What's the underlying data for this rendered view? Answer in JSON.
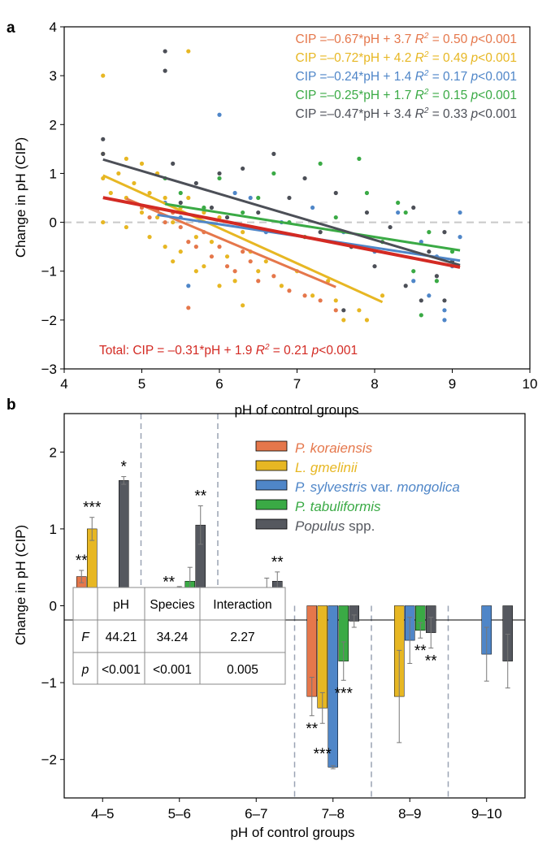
{
  "chart_data": [
    {
      "panel": "a",
      "type": "scatter",
      "xlabel": "pH of control groups",
      "ylabel": "Change in pH (CIP)",
      "xlim": [
        4,
        10
      ],
      "ylim": [
        -3,
        4
      ],
      "xticks": [
        4,
        5,
        6,
        7,
        8,
        9,
        10
      ],
      "yticks": [
        -3,
        -2,
        -1,
        0,
        1,
        2,
        3,
        4
      ],
      "reference_line_y": 0,
      "grid": false,
      "colors": {
        "orange": "#e5774b",
        "yellow": "#e7b723",
        "blue": "#4f86c8",
        "green": "#3aaa45",
        "gray": "#4c4f57",
        "red": "#d32a23"
      },
      "series": [
        {
          "color": "orange",
          "fit_slope": -0.67,
          "fit_intercept": 3.7,
          "fit_x": [
            4.8,
            7.5
          ],
          "eq": "CIP =–0.67*pH + 3.7",
          "r2_text": " = 0.50 ",
          "p_text": "<0.001",
          "points": [
            [
              5.0,
              0.3
            ],
            [
              5.1,
              0.1
            ],
            [
              5.2,
              0.25
            ],
            [
              5.3,
              0.0
            ],
            [
              5.4,
              0.2
            ],
            [
              5.5,
              -0.1
            ],
            [
              5.6,
              -0.4
            ],
            [
              5.7,
              -0.5
            ],
            [
              5.8,
              -0.2
            ],
            [
              5.9,
              -0.7
            ],
            [
              6.0,
              -0.5
            ],
            [
              6.1,
              -0.9
            ],
            [
              6.2,
              -1.0
            ],
            [
              6.3,
              -0.6
            ],
            [
              6.5,
              -1.2
            ],
            [
              6.7,
              -1.1
            ],
            [
              6.9,
              -1.4
            ],
            [
              7.1,
              -1.5
            ],
            [
              7.3,
              -1.6
            ],
            [
              7.5,
              -1.8
            ],
            [
              5.6,
              -1.75
            ],
            [
              5.5,
              0.2
            ],
            [
              6.4,
              -0.8
            ]
          ]
        },
        {
          "color": "yellow",
          "fit_slope": -0.72,
          "fit_intercept": 4.2,
          "fit_x": [
            4.5,
            8.1
          ],
          "eq": "CIP =–0.72*pH + 4.2",
          "r2_text": " = 0.49 ",
          "p_text": "<0.001",
          "points": [
            [
              4.5,
              3.0
            ],
            [
              4.5,
              1.4
            ],
            [
              4.5,
              0.9
            ],
            [
              4.5,
              0.0
            ],
            [
              4.6,
              0.6
            ],
            [
              4.7,
              1.0
            ],
            [
              4.8,
              1.3
            ],
            [
              4.8,
              0.5
            ],
            [
              4.8,
              -0.1
            ],
            [
              4.9,
              0.8
            ],
            [
              5.0,
              1.2
            ],
            [
              5.0,
              0.2
            ],
            [
              5.1,
              0.6
            ],
            [
              5.1,
              -0.3
            ],
            [
              5.2,
              1.0
            ],
            [
              5.2,
              0.1
            ],
            [
              5.3,
              0.5
            ],
            [
              5.3,
              -0.5
            ],
            [
              5.4,
              0.0
            ],
            [
              5.4,
              -0.8
            ],
            [
              5.5,
              0.3
            ],
            [
              5.5,
              -0.6
            ],
            [
              5.6,
              3.5
            ],
            [
              5.6,
              0.5
            ],
            [
              5.7,
              -0.3
            ],
            [
              5.7,
              -1.0
            ],
            [
              5.8,
              0.2
            ],
            [
              5.8,
              -0.9
            ],
            [
              5.9,
              -0.4
            ],
            [
              6.0,
              0.1
            ],
            [
              6.0,
              -1.3
            ],
            [
              6.1,
              -0.7
            ],
            [
              6.2,
              -1.2
            ],
            [
              6.3,
              -0.2
            ],
            [
              6.3,
              -1.7
            ],
            [
              6.4,
              -0.6
            ],
            [
              6.5,
              -1.0
            ],
            [
              6.6,
              -0.8
            ],
            [
              6.8,
              -1.3
            ],
            [
              7.0,
              -1.0
            ],
            [
              7.2,
              -1.5
            ],
            [
              7.4,
              -1.2
            ],
            [
              7.5,
              -1.6
            ],
            [
              7.6,
              -2.0
            ],
            [
              7.8,
              -1.8
            ],
            [
              7.9,
              -2.0
            ],
            [
              8.1,
              -1.5
            ]
          ]
        },
        {
          "color": "blue",
          "fit_slope": -0.24,
          "fit_intercept": 1.4,
          "fit_x": [
            5.2,
            9.1
          ],
          "eq": "CIP =–0.24*pH + 1.4",
          "r2_text": " = 0.17 ",
          "p_text": "<0.001",
          "points": [
            [
              5.3,
              0.4
            ],
            [
              5.5,
              0.1
            ],
            [
              5.6,
              -1.3
            ],
            [
              6.0,
              2.2
            ],
            [
              6.2,
              0.6
            ],
            [
              6.4,
              0.5
            ],
            [
              6.6,
              -0.2
            ],
            [
              6.8,
              0.0
            ],
            [
              7.2,
              0.3
            ],
            [
              7.6,
              -0.2
            ],
            [
              8.0,
              -0.6
            ],
            [
              8.3,
              0.2
            ],
            [
              8.5,
              -1.2
            ],
            [
              8.6,
              -0.4
            ],
            [
              8.7,
              -1.5
            ],
            [
              8.8,
              -0.7
            ],
            [
              8.9,
              -1.8
            ],
            [
              9.0,
              -0.9
            ],
            [
              9.1,
              0.2
            ],
            [
              9.1,
              -0.3
            ],
            [
              8.9,
              -2.0
            ]
          ]
        },
        {
          "color": "green",
          "fit_slope": -0.25,
          "fit_intercept": 1.7,
          "fit_x": [
            5.3,
            9.1
          ],
          "eq": "CIP =–0.25*pH + 1.7",
          "r2_text": " = 0.15 ",
          "p_text": "<0.001",
          "points": [
            [
              5.3,
              0.9
            ],
            [
              5.5,
              0.6
            ],
            [
              5.8,
              0.3
            ],
            [
              6.0,
              0.9
            ],
            [
              6.3,
              0.2
            ],
            [
              6.5,
              0.5
            ],
            [
              6.7,
              1.0
            ],
            [
              6.9,
              0.0
            ],
            [
              7.1,
              -0.3
            ],
            [
              7.3,
              1.2
            ],
            [
              7.5,
              0.1
            ],
            [
              7.7,
              -0.5
            ],
            [
              7.9,
              0.6
            ],
            [
              8.1,
              -0.4
            ],
            [
              8.3,
              0.4
            ],
            [
              8.5,
              -1.0
            ],
            [
              8.6,
              -1.9
            ],
            [
              8.7,
              -0.2
            ],
            [
              8.8,
              -1.2
            ],
            [
              9.0,
              -0.6
            ],
            [
              8.4,
              0.2
            ],
            [
              7.8,
              1.3
            ]
          ]
        },
        {
          "color": "gray",
          "fit_slope": -0.47,
          "fit_intercept": 3.4,
          "fit_x": [
            4.5,
            9.1
          ],
          "eq": "CIP =–0.47*pH + 3.4",
          "r2_text": " = 0.33 ",
          "p_text": "<0.001",
          "points": [
            [
              4.5,
              1.7
            ],
            [
              4.5,
              1.4
            ],
            [
              5.3,
              3.5
            ],
            [
              5.3,
              3.1
            ],
            [
              5.4,
              1.2
            ],
            [
              5.5,
              0.4
            ],
            [
              5.7,
              0.8
            ],
            [
              5.9,
              0.3
            ],
            [
              6.0,
              1.0
            ],
            [
              6.1,
              0.1
            ],
            [
              6.3,
              1.1
            ],
            [
              6.5,
              0.2
            ],
            [
              6.7,
              1.4
            ],
            [
              6.9,
              0.5
            ],
            [
              7.1,
              0.9
            ],
            [
              7.3,
              -0.2
            ],
            [
              7.5,
              0.6
            ],
            [
              7.7,
              -0.5
            ],
            [
              7.9,
              0.2
            ],
            [
              8.0,
              -0.9
            ],
            [
              8.2,
              -0.1
            ],
            [
              8.4,
              -1.3
            ],
            [
              8.5,
              0.3
            ],
            [
              8.6,
              -1.6
            ],
            [
              8.7,
              -0.6
            ],
            [
              8.8,
              -1.1
            ],
            [
              8.9,
              -0.2
            ],
            [
              9.0,
              -0.8
            ],
            [
              8.9,
              -1.6
            ],
            [
              7.6,
              -1.8
            ]
          ]
        }
      ],
      "total": {
        "color": "red",
        "fit_slope": -0.31,
        "fit_intercept": 1.9,
        "fit_x": [
          4.5,
          9.1
        ],
        "text": "Total: CIP = –0.31*pH + 1.9 ",
        "r2_text": " = 0.21 ",
        "p_text": "<0.001"
      }
    },
    {
      "panel": "b",
      "type": "bar",
      "xlabel": "pH of control groups",
      "ylabel": "Change in pH (CIP)",
      "ylim": [
        -2.5,
        2.5
      ],
      "yticks": [
        -2,
        -1,
        0,
        1,
        2
      ],
      "categories": [
        "4–5",
        "5–6",
        "6–7",
        "7–8",
        "8–9",
        "9–10"
      ],
      "legend_position": "top-right",
      "series": [
        {
          "name": "P. koraiensis",
          "color": "#e5774b",
          "values": [
            0.38,
            -0.08,
            -0.05,
            -1.18,
            null,
            null
          ],
          "errors": [
            0.08,
            0.1,
            0.12,
            0.25,
            null,
            null
          ]
        },
        {
          "name": "L. gmelinii",
          "color": "#e7b723",
          "values": [
            1.0,
            0.1,
            -0.3,
            -1.33,
            -1.18,
            null
          ],
          "errors": [
            0.15,
            0.08,
            0.08,
            0.2,
            0.6,
            null
          ]
        },
        {
          "name": "P. sylvestris var. mongolica",
          "color": "#4f86c8",
          "values": [
            null,
            0.1,
            -0.15,
            -2.1,
            -0.45,
            -0.63
          ],
          "errors": [
            null,
            0.15,
            0.1,
            0.02,
            0.3,
            0.35
          ]
        },
        {
          "name": "P. tabuliformis",
          "color": "#3aaa45",
          "values": [
            null,
            0.32,
            0.18,
            -0.72,
            -0.32,
            null
          ],
          "errors": [
            null,
            0.18,
            0.18,
            0.25,
            0.1,
            null
          ]
        },
        {
          "name": "Populus spp.",
          "color": "#55585f",
          "values": [
            1.63,
            1.05,
            0.32,
            -0.2,
            -0.35,
            -0.72
          ],
          "errors": [
            0.05,
            0.25,
            0.12,
            0.08,
            0.2,
            0.35
          ]
        }
      ],
      "significance": [
        {
          "cat": 0,
          "series": 0,
          "text": "**",
          "where": "above"
        },
        {
          "cat": 0,
          "series": 1,
          "text": "***",
          "where": "above"
        },
        {
          "cat": 0,
          "series": 4,
          "text": "*",
          "where": "above"
        },
        {
          "cat": 1,
          "series": 1,
          "text": "**",
          "where": "above"
        },
        {
          "cat": 1,
          "series": 4,
          "text": "**",
          "where": "above"
        },
        {
          "cat": 2,
          "series": 1,
          "text": "***",
          "where": "below"
        },
        {
          "cat": 2,
          "series": 4,
          "text": "**",
          "where": "above"
        },
        {
          "cat": 3,
          "series": 0,
          "text": "**",
          "where": "below"
        },
        {
          "cat": 3,
          "series": 1,
          "text": "***",
          "where": "below"
        },
        {
          "cat": 3,
          "series": 3,
          "text": "***",
          "where": "below"
        },
        {
          "cat": 4,
          "series": 3,
          "text": "**",
          "where": "below"
        },
        {
          "cat": 4,
          "series": 4,
          "text": "**",
          "where": "below"
        }
      ],
      "stats_table": {
        "headers": [
          "",
          "pH",
          "Species",
          "Interaction"
        ],
        "rows": [
          [
            "F",
            "44.21",
            "34.24",
            "2.27"
          ],
          [
            "p",
            "<0.001",
            "<0.001",
            "0.005"
          ]
        ]
      }
    }
  ]
}
